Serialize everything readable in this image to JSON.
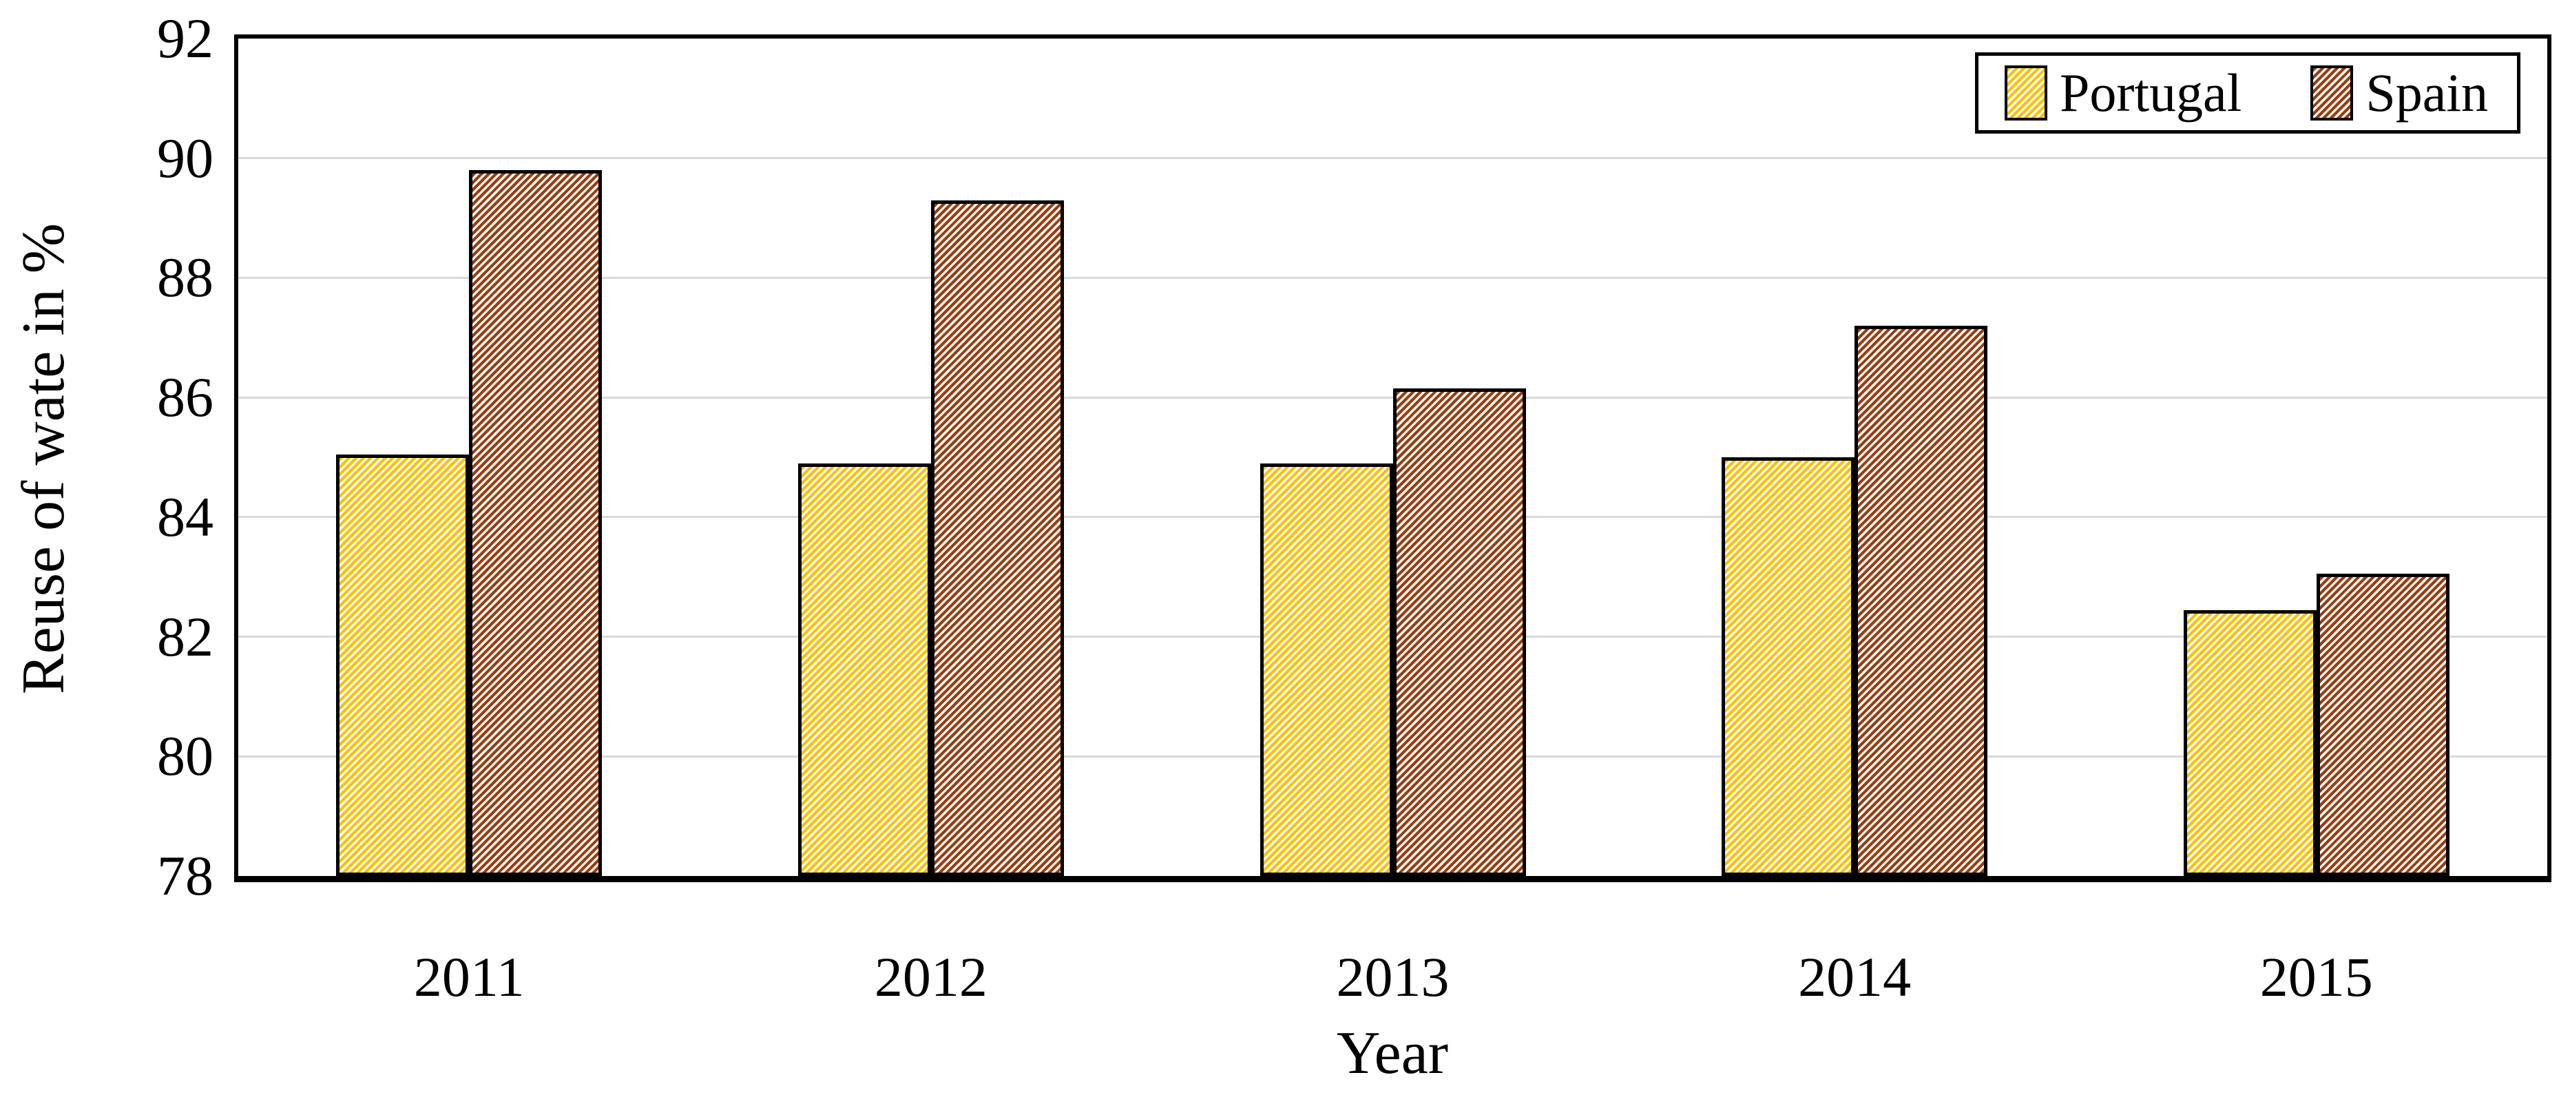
{
  "chart_data": {
    "type": "bar",
    "title": "",
    "categories": [
      "2011",
      "2012",
      "2013",
      "2014",
      "2015"
    ],
    "series": [
      {
        "name": "Portugal",
        "color": "#FFC000",
        "pattern": "diagonal-hatch",
        "values": [
          85.05,
          84.9,
          84.9,
          85.0,
          82.45
        ]
      },
      {
        "name": "Spain",
        "color": "#9A3D0F",
        "pattern": "diagonal-hatch",
        "values": [
          89.8,
          89.3,
          86.15,
          87.2,
          83.05
        ]
      }
    ],
    "xlabel": "Year",
    "ylabel": "Reuse of wate in %",
    "ylim": [
      78,
      92
    ],
    "yticks": [
      78,
      80,
      82,
      84,
      86,
      88,
      90,
      92
    ],
    "grid": "horizontal",
    "gridline_color": "#D9D9D9",
    "axis_border_color": "#000000",
    "background_color": "#FFFFFF",
    "legend_position": "top-right"
  }
}
